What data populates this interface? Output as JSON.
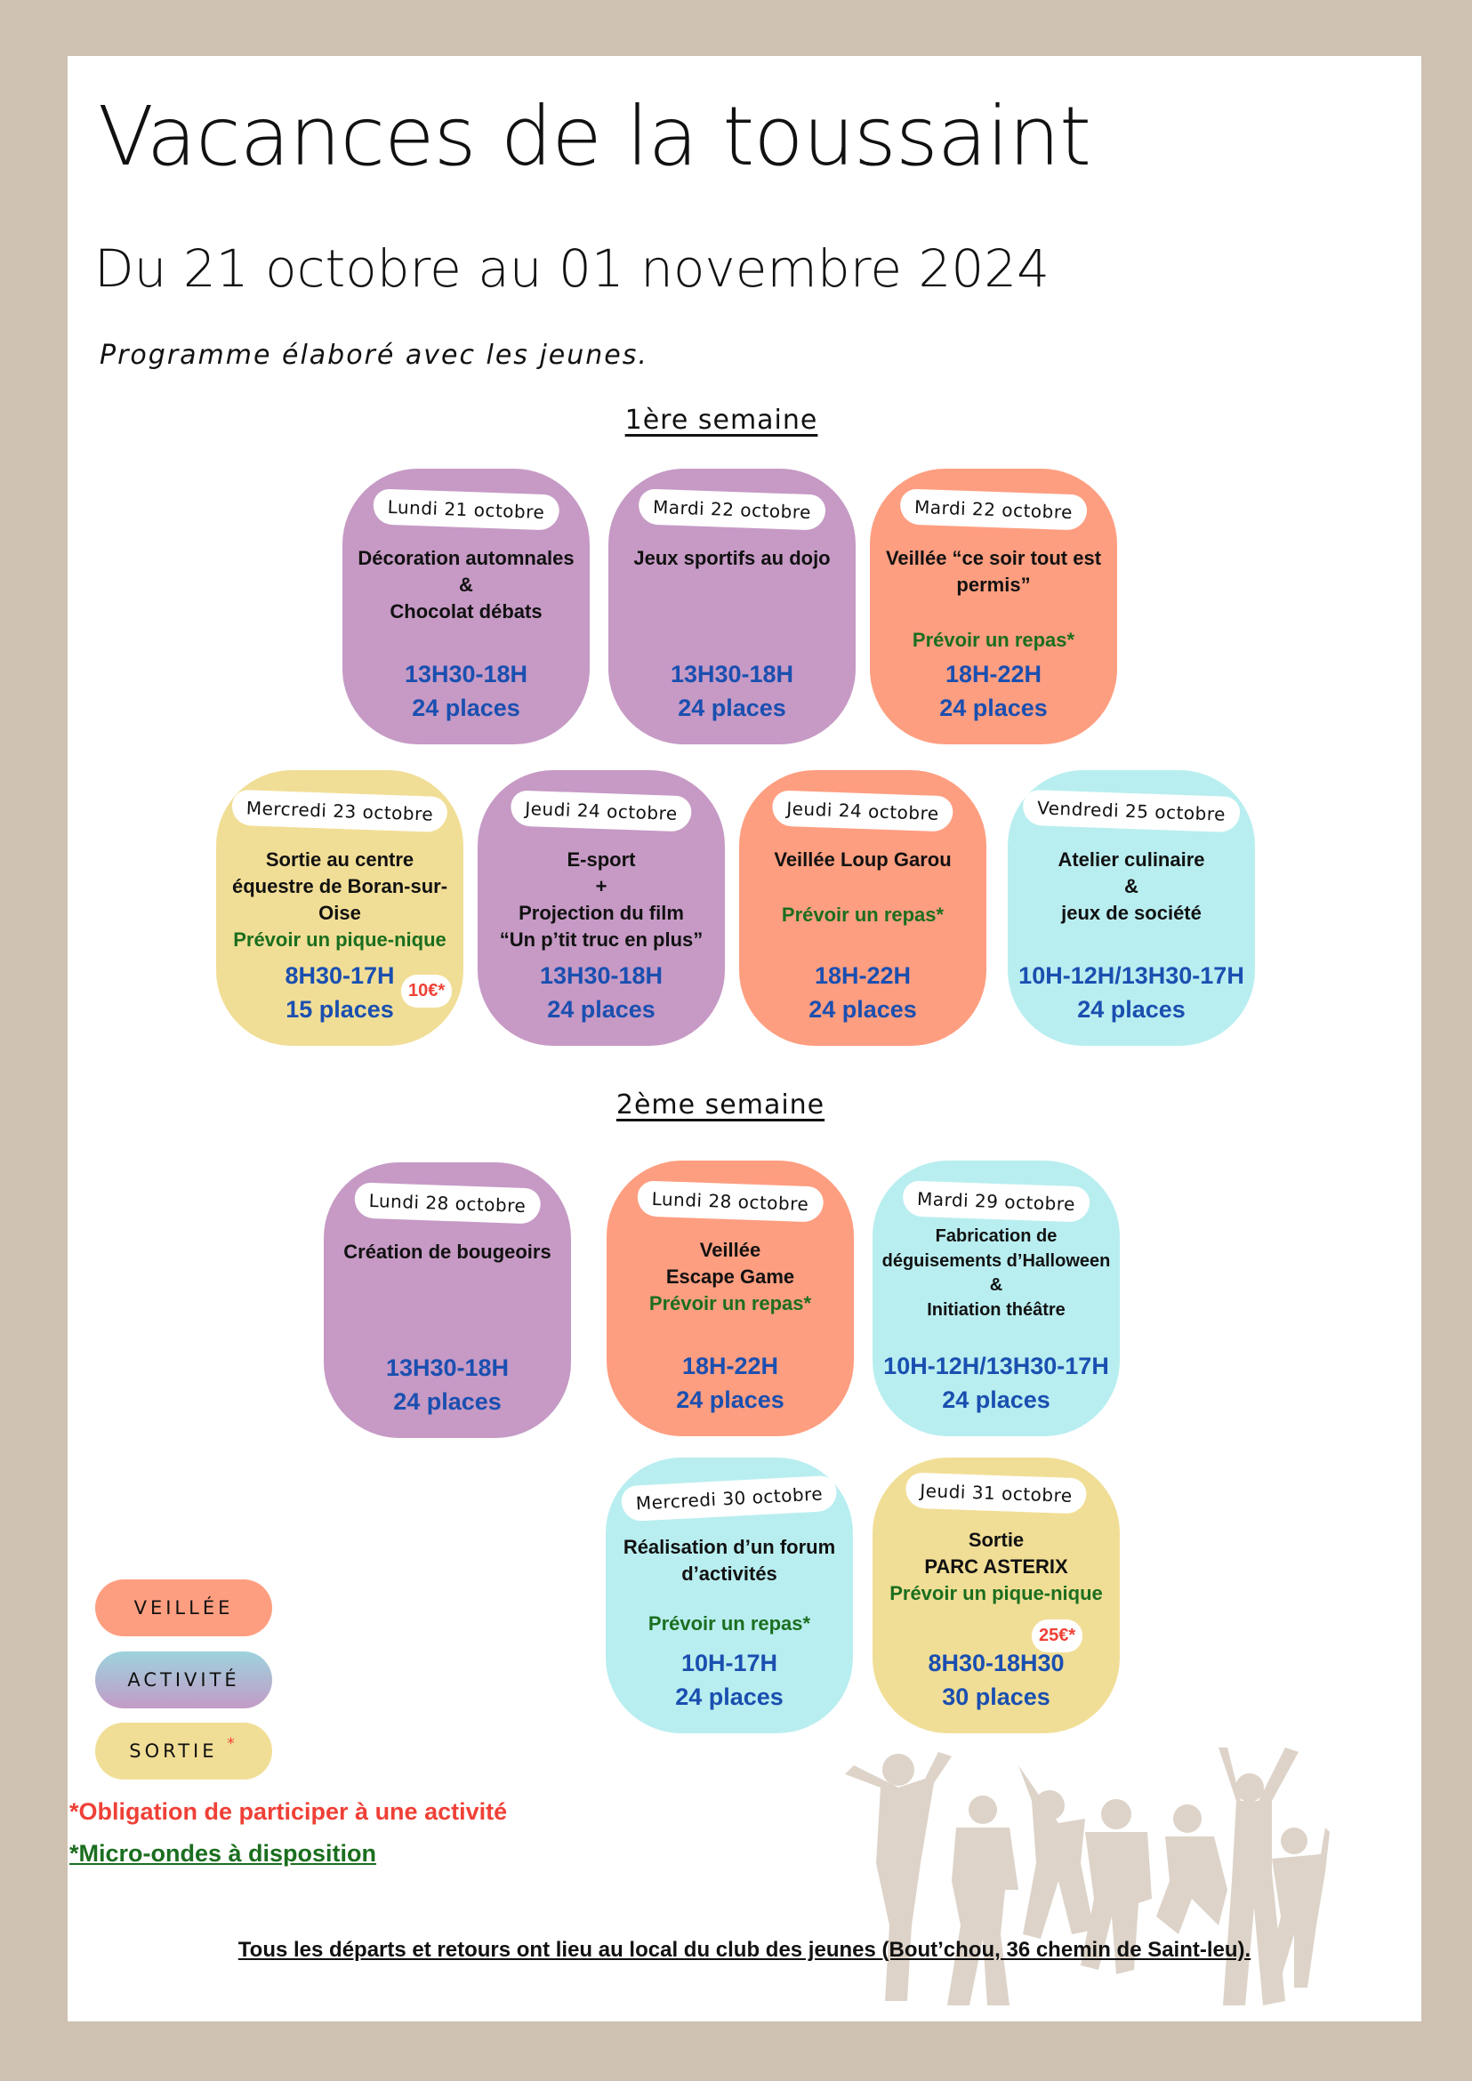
{
  "header": {
    "title": "Vacances de la toussaint",
    "subtitle": "Du 21 octobre au 01 novembre 2024",
    "intro": "Programme élaboré avec les jeunes."
  },
  "colors": {
    "veillee": "#fe9e80",
    "activite": "#c69ac5",
    "activite_alt": "#b9eef0",
    "sortie": "#f1de96",
    "times": "#1a4fb0",
    "note_green": "#1b6e1f",
    "warning_red": "#ef4036",
    "frame": "#cfc1b1"
  },
  "weeks": [
    {
      "label": "1ère semaine",
      "cards": [
        {
          "date": "Lundi 21 octobre",
          "title": "Décoration automnales\n&\nChocolat débats",
          "time": "13H30-18H",
          "places": "24 places",
          "type": "activité"
        },
        {
          "date": "Mardi 22 octobre",
          "title": "Jeux sportifs au dojo",
          "time": "13H30-18H",
          "places": "24 places",
          "type": "activité"
        },
        {
          "date": "Mardi 22 octobre",
          "title": "Veillée “ce soir tout est permis”",
          "note": "Prévoir un repas*",
          "time": "18H-22H",
          "places": "24 places",
          "type": "veillée"
        },
        {
          "date": "Mercredi 23 octobre",
          "title": "Sortie au centre\néquestre de Boran-sur-\nOise",
          "note": "Prévoir un pique-nique",
          "time": "8H30-17H",
          "places": "15 places",
          "price": "10€*",
          "type": "sortie"
        },
        {
          "date": "Jeudi 24 octobre",
          "title": "E-sport\n+\nProjection du film\n“Un p’tit truc en plus”",
          "time": "13H30-18H",
          "places": "24 places",
          "type": "activité"
        },
        {
          "date": "Jeudi 24 octobre",
          "title": "Veillée Loup Garou",
          "note": "Prévoir un repas*",
          "time": "18H-22H",
          "places": "24 places",
          "type": "veillée"
        },
        {
          "date": "Vendredi 25 octobre",
          "title": "Atelier culinaire\n&\njeux de société",
          "time": "10H-12H/13H30-17H",
          "places": "24 places",
          "type": "activité"
        }
      ]
    },
    {
      "label": "2ème semaine",
      "cards": [
        {
          "date": "Lundi 28 octobre",
          "title": "Création de bougeoirs",
          "time": "13H30-18H",
          "places": "24 places",
          "type": "activité"
        },
        {
          "date": "Lundi 28 octobre",
          "title": "Veillée\nEscape Game",
          "note": "Prévoir un repas*",
          "time": "18H-22H",
          "places": "24 places",
          "type": "veillée"
        },
        {
          "date": "Mardi 29 octobre",
          "title": "Fabrication de\ndéguisements d’Halloween\n&\nInitiation théâtre",
          "time": "10H-12H/13H30-17H",
          "places": "24 places",
          "type": "activité"
        },
        {
          "date": "Mercredi 30 octobre",
          "title": "Réalisation d’un forum\nd’activités",
          "note": "Prévoir un repas*",
          "time": "10H-17H",
          "places": "24 places",
          "type": "activité"
        },
        {
          "date": "Jeudi 31 octobre",
          "title": "Sortie\nPARC ASTERIX",
          "note": "Prévoir un pique-nique",
          "time": "8H30-18H30",
          "places": "30 places",
          "price": "25€*",
          "type": "sortie"
        }
      ]
    }
  ],
  "legend": {
    "items": [
      {
        "label": "VEILLÉE"
      },
      {
        "label": "ACTIVITÉ"
      },
      {
        "label": "SORTIE",
        "mark": "*"
      }
    ],
    "note_red": "*Obligation de participer à une activité",
    "note_green": "*Micro-ondes à disposition"
  },
  "footer": "Tous les départs et retours ont lieu au local du club des jeunes  (Bout’chou, 36 chemin de Saint-leu).",
  "decoration": {
    "icon": "jumping-kids-silhouettes-icon"
  }
}
